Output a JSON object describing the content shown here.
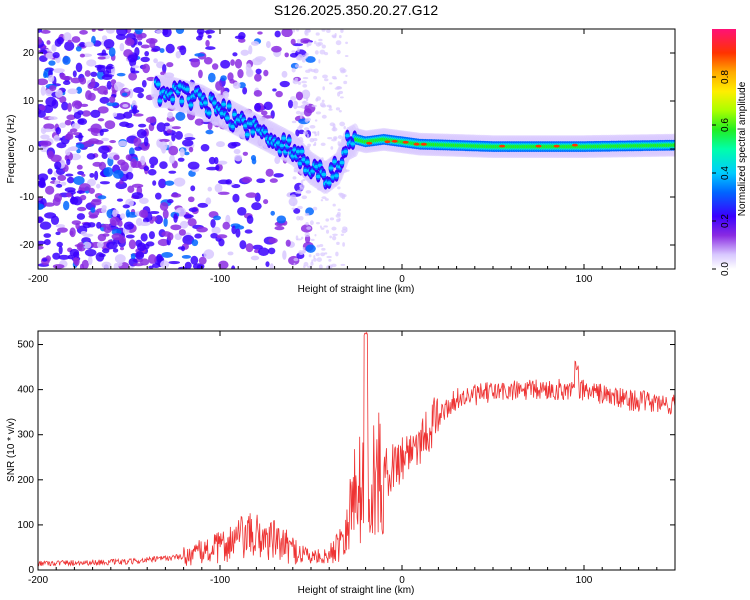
{
  "title": "S126.2025.350.20.27.G12",
  "chart_data": [
    {
      "type": "heatmap",
      "name": "spectrogram",
      "xlabel": "Height of straight line (km)",
      "ylabel": "Frequency (Hz)",
      "xlim": [
        -200,
        150
      ],
      "ylim": [
        -25,
        25
      ],
      "xticks": [
        -200,
        -100,
        0,
        100
      ],
      "yticks": [
        -20,
        -10,
        0,
        10,
        20
      ],
      "colorbar": {
        "label": "Normalized spectral amplitude",
        "range": [
          0,
          1
        ],
        "ticks": [
          0.0,
          0.2,
          0.4,
          0.6,
          0.8
        ],
        "tick_labels": [
          "0.0",
          "0.2",
          "0.4",
          "0.6",
          "0.8"
        ]
      },
      "ridge": {
        "description_points_x": [
          -130,
          -110,
          -90,
          -75,
          -60,
          -50,
          -42,
          -35,
          -30,
          -25,
          -20,
          -10,
          0,
          10,
          50,
          100,
          150
        ],
        "description_points_y": [
          12,
          10,
          6,
          3,
          0,
          -4,
          -6,
          -4,
          1,
          2,
          1.5,
          2,
          1.5,
          1,
          0.5,
          0.5,
          0.8
        ]
      }
    },
    {
      "type": "line",
      "name": "snr",
      "xlabel": "Height of straight line (km)",
      "ylabel": "SNR (10 * v/v)",
      "xlim": [
        -200,
        150
      ],
      "ylim": [
        0,
        530
      ],
      "xticks": [
        -200,
        -100,
        0,
        100
      ],
      "yticks": [
        0,
        100,
        200,
        300,
        400,
        500
      ],
      "color": "#ee3333",
      "trend_x": [
        -200,
        -150,
        -120,
        -100,
        -90,
        -80,
        -70,
        -60,
        -50,
        -40,
        -35,
        -30,
        -25,
        -20,
        -15,
        -10,
        0,
        10,
        20,
        30,
        50,
        80,
        100,
        120,
        150
      ],
      "trend_y": [
        15,
        18,
        30,
        50,
        70,
        75,
        65,
        45,
        30,
        30,
        60,
        110,
        180,
        200,
        200,
        210,
        250,
        290,
        340,
        380,
        395,
        400,
        400,
        380,
        365
      ]
    }
  ]
}
